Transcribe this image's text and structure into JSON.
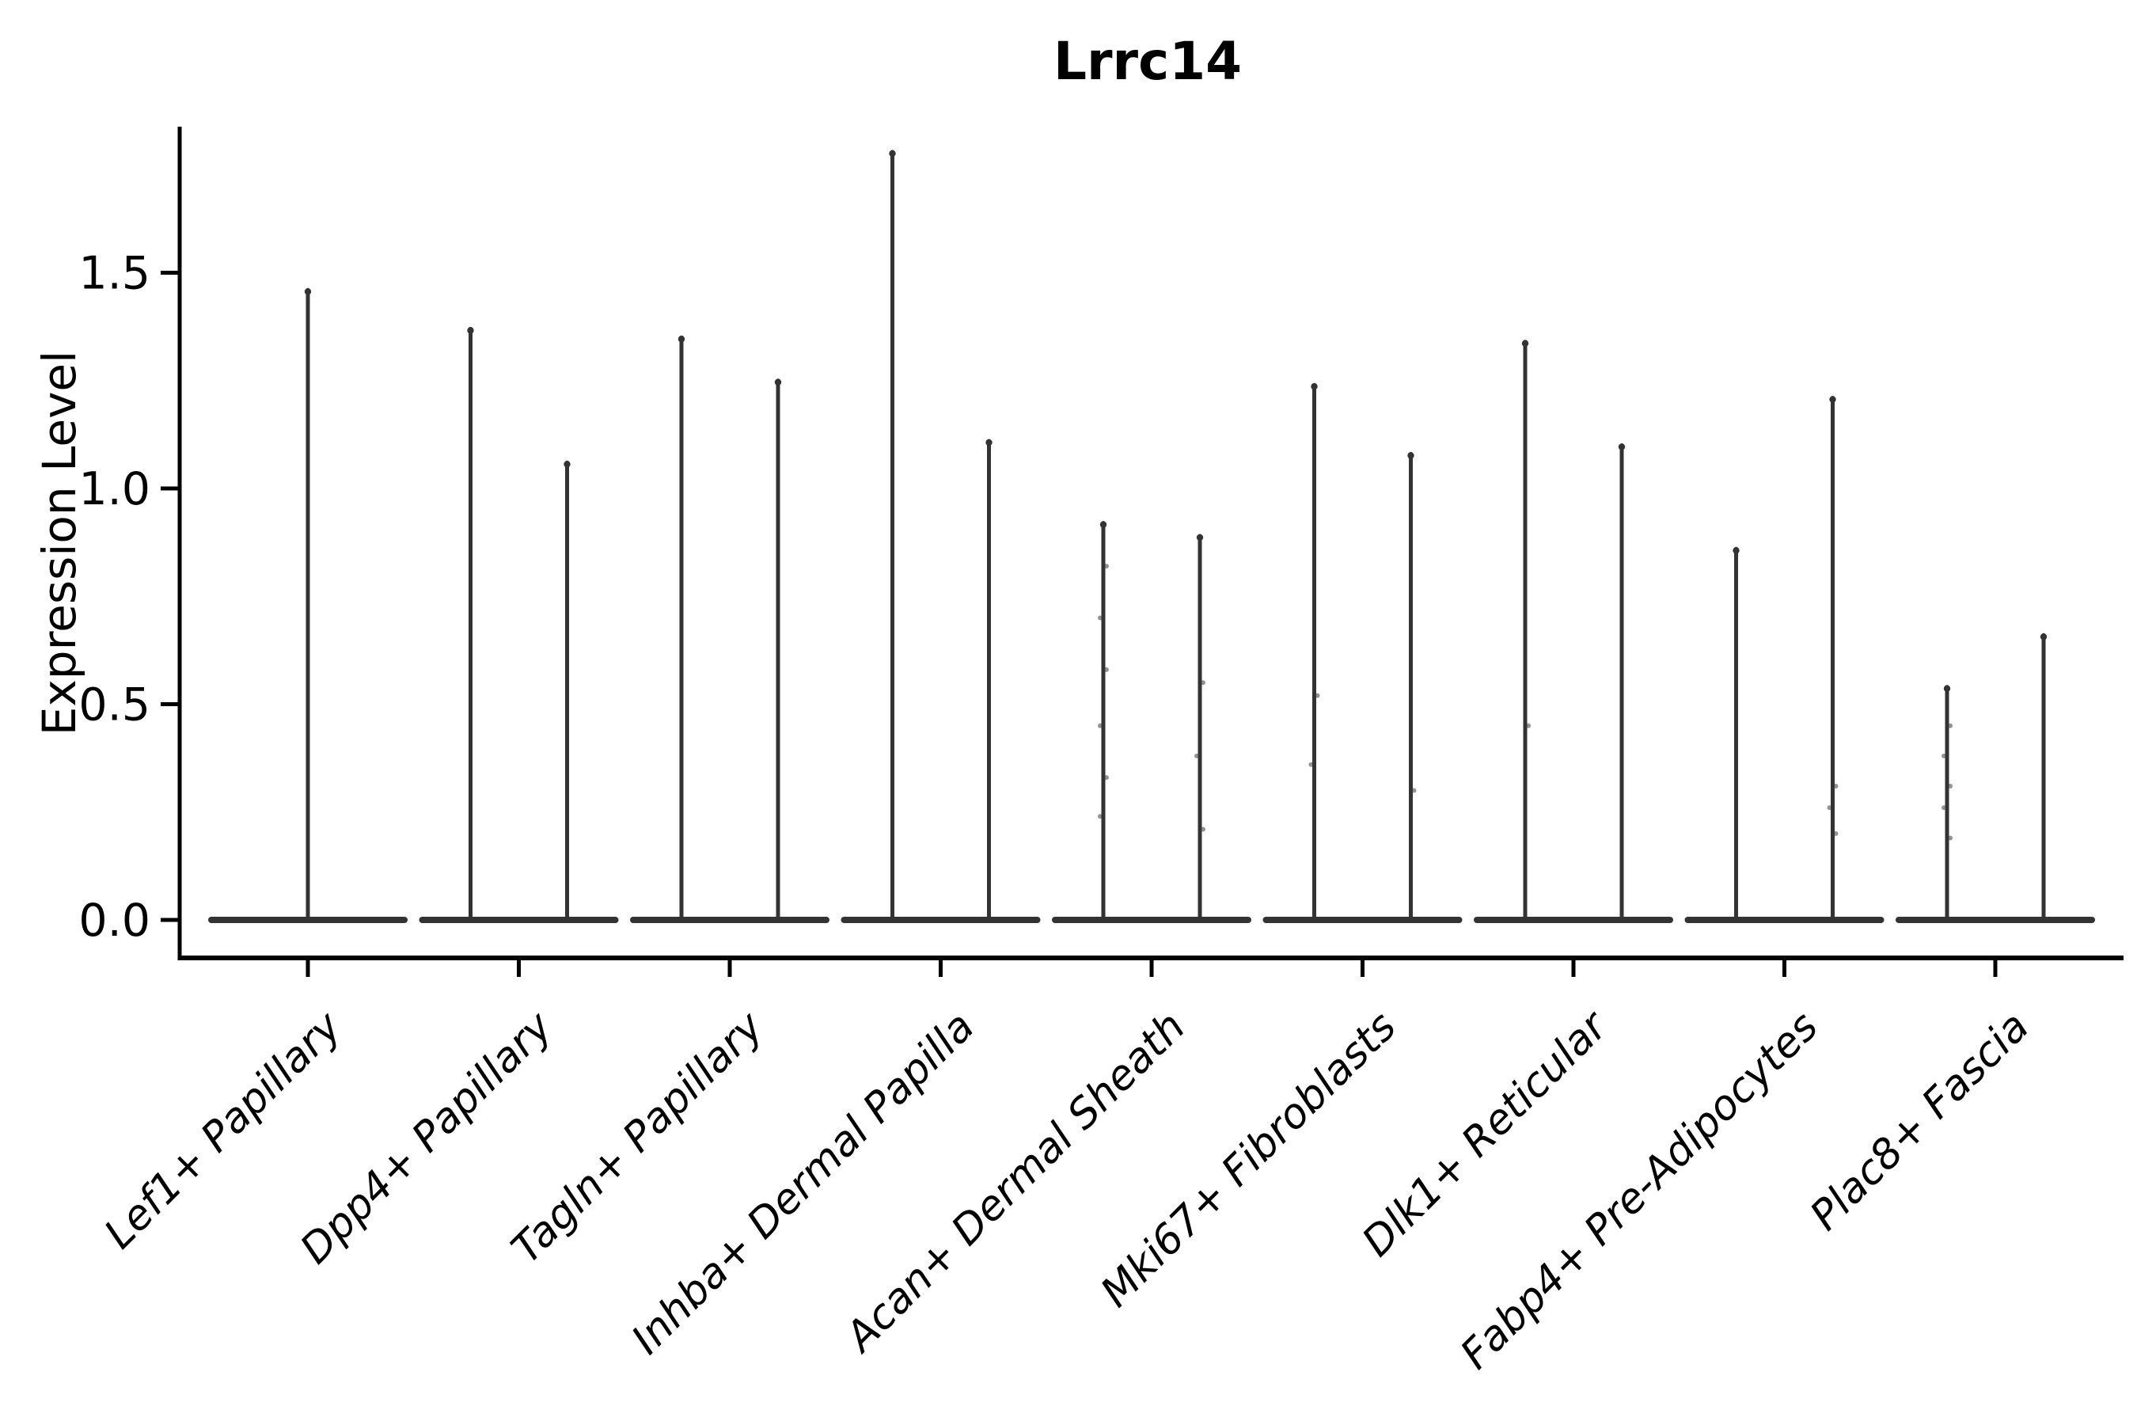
{
  "chart_data": {
    "type": "violin",
    "title": "Lrrc14",
    "xlabel": "",
    "ylabel": "Expression Level",
    "y_ticks": [
      {
        "value": 0.0,
        "label": "0.0"
      },
      {
        "value": 0.5,
        "label": "0.5"
      },
      {
        "value": 1.0,
        "label": "1.0"
      },
      {
        "value": 1.5,
        "label": "1.5"
      }
    ],
    "ylim": [
      -0.11,
      1.84
    ],
    "grid": false,
    "legend_position": "none",
    "x_label_style": {
      "rotation_deg": 45,
      "italic": true,
      "anchor": "end"
    },
    "categories": [
      "Lef1+ Papillary",
      "Dpp4+ Papillary",
      "Tagln+ Papillary",
      "Inhba+ Dermal Papilla",
      "Acan+ Dermal Sheath",
      "Mki67+ Fibroblasts",
      "Dlk1+ Reticular",
      "Fabp4+ Pre-Adipocytes",
      "Plac8+ Fascia"
    ],
    "series": [
      {
        "category": "Lef1+ Papillary",
        "violins": [
          {
            "side": "single",
            "max": 1.46,
            "jitter_points": []
          }
        ]
      },
      {
        "category": "Dpp4+ Papillary",
        "violins": [
          {
            "side": "left",
            "max": 1.37,
            "jitter_points": []
          },
          {
            "side": "right",
            "max": 1.06,
            "jitter_points": []
          }
        ]
      },
      {
        "category": "Tagln+ Papillary",
        "violins": [
          {
            "side": "left",
            "max": 1.35,
            "jitter_points": []
          },
          {
            "side": "right",
            "max": 1.25,
            "jitter_points": []
          }
        ]
      },
      {
        "category": "Inhba+ Dermal Papilla",
        "violins": [
          {
            "side": "left",
            "max": 1.78,
            "jitter_points": []
          },
          {
            "side": "right",
            "max": 1.11,
            "jitter_points": []
          }
        ]
      },
      {
        "category": "Acan+ Dermal Sheath",
        "violins": [
          {
            "side": "left",
            "max": 0.92,
            "jitter_points": [
              0.82,
              0.7,
              0.58,
              0.45,
              0.33,
              0.24
            ]
          },
          {
            "side": "right",
            "max": 0.89,
            "jitter_points": [
              0.55,
              0.38,
              0.21
            ]
          }
        ]
      },
      {
        "category": "Mki67+ Fibroblasts",
        "violins": [
          {
            "side": "left",
            "max": 1.24,
            "jitter_points": [
              0.52,
              0.36
            ]
          },
          {
            "side": "right",
            "max": 1.08,
            "jitter_points": [
              0.3
            ]
          }
        ]
      },
      {
        "category": "Dlk1+ Reticular",
        "violins": [
          {
            "side": "left",
            "max": 1.34,
            "jitter_points": [
              0.45
            ]
          },
          {
            "side": "right",
            "max": 1.1,
            "jitter_points": []
          }
        ]
      },
      {
        "category": "Fabp4+ Pre-Adipocytes",
        "violins": [
          {
            "side": "left",
            "max": 0.86,
            "jitter_points": []
          },
          {
            "side": "right",
            "max": 1.21,
            "jitter_points": [
              0.31,
              0.26,
              0.2
            ]
          }
        ]
      },
      {
        "category": "Plac8+ Fascia",
        "violins": [
          {
            "side": "left",
            "max": 0.54,
            "jitter_points": [
              0.45,
              0.38,
              0.31,
              0.26,
              0.19
            ]
          },
          {
            "side": "right",
            "max": 0.66,
            "jitter_points": []
          }
        ]
      }
    ],
    "style": {
      "violin_color": "#333333",
      "axis_color": "#000000",
      "text_color": "#000000",
      "background": "#ffffff"
    }
  }
}
